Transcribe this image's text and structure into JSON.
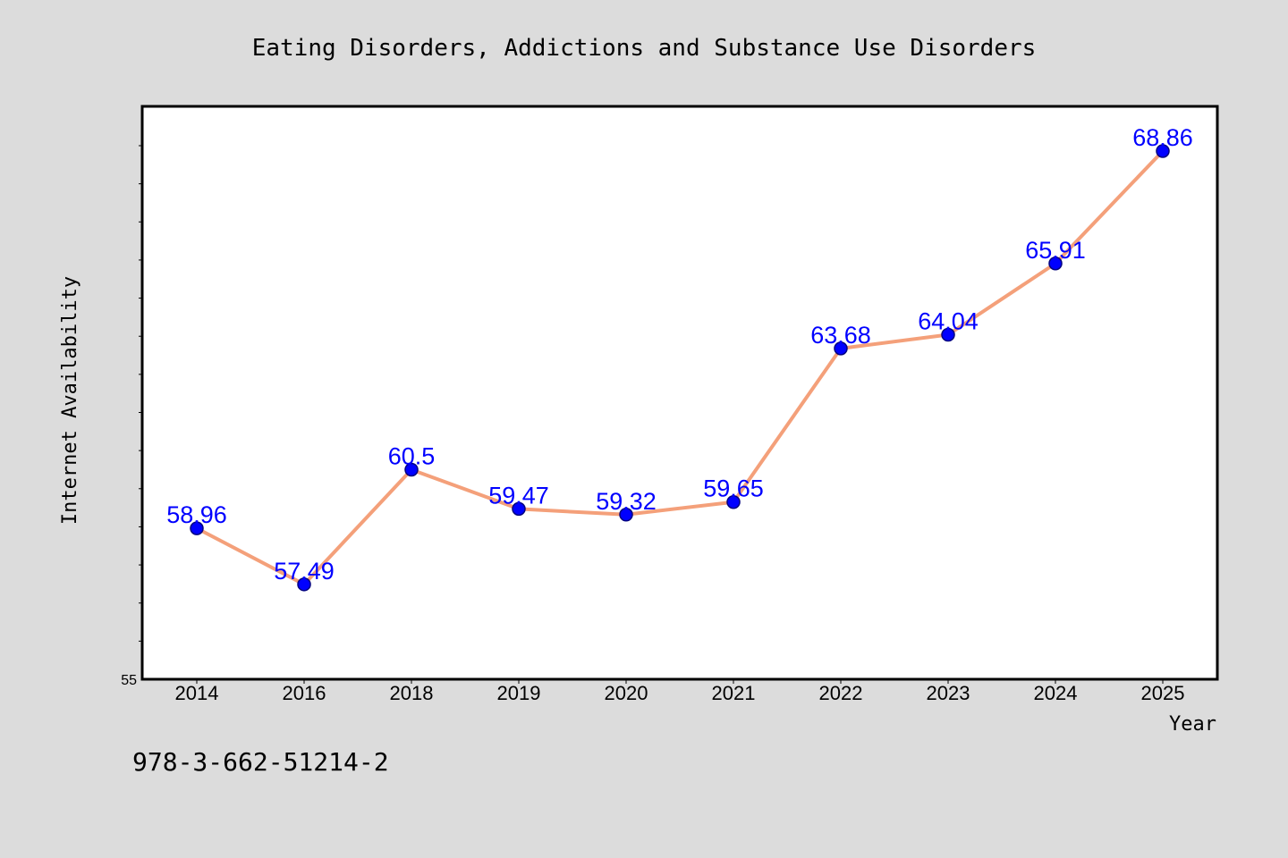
{
  "chart_data": {
    "type": "line",
    "title": "Eating Disorders, Addictions and Substance Use Disorders",
    "xlabel": "Year",
    "ylabel": "Internet Availability",
    "categories": [
      "2014",
      "2016",
      "2018",
      "2019",
      "2020",
      "2021",
      "2022",
      "2023",
      "2024",
      "2025"
    ],
    "values": [
      58.96,
      57.49,
      60.5,
      59.47,
      59.32,
      59.65,
      63.68,
      64.04,
      65.91,
      68.86
    ],
    "data_labels": [
      "58.96",
      "57.49",
      "60.5",
      "59.47",
      "59.32",
      "59.65",
      "63.68",
      "64.04",
      "65.91",
      "68.86"
    ],
    "y_tick_labels": [
      "55"
    ],
    "ylim": [
      55,
      70
    ],
    "grid": false,
    "legend": "none",
    "colors": {
      "line": "#f4a07a",
      "marker": "#0000ff",
      "marker_edge": "#000080",
      "data_label": "#0000ff",
      "plot_background": "#ffffff",
      "page_background": "#dcdcdc"
    }
  },
  "footer_text": "978-3-662-51214-2"
}
